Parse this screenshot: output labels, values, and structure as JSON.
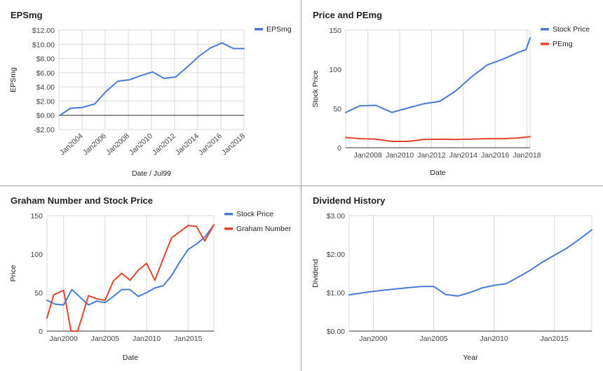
{
  "chart_data": [
    {
      "type": "line",
      "title": "EPSmg",
      "xlabel": "Date / Jul99",
      "ylabel": "EPSmg",
      "xlim": [
        2002,
        2018
      ],
      "ylim": [
        -2,
        12
      ],
      "yticks": [
        -2,
        0,
        2,
        4,
        6,
        8,
        10,
        12
      ],
      "ytick_labels": [
        "-$2.00",
        "$0.00",
        "$2.00",
        "$4.00",
        "$6.00",
        "$8.00",
        "$10.00",
        "$12.00"
      ],
      "xticks": [
        2004,
        2006,
        2008,
        2010,
        2012,
        2014,
        2016,
        2018
      ],
      "xtick_labels": [
        "Jan2004",
        "Jan2006",
        "Jan2008",
        "Jan2010",
        "Jan2012",
        "Jan2014",
        "Jan2016",
        "Jan2018"
      ],
      "rotate_xticks": true,
      "zero_line": true,
      "legend": "right",
      "series": [
        {
          "name": "EPSmg",
          "color": "#4a7bd0",
          "x": [
            2002.1,
            2003.0,
            2004.0,
            2005.1,
            2006.1,
            2007.1,
            2008.1,
            2009.1,
            2010.1,
            2011.1,
            2012.1,
            2013.1,
            2014.1,
            2015.1,
            2016.1,
            2017.1,
            2018.0
          ],
          "y": [
            0.0,
            1.0,
            1.1,
            1.6,
            3.4,
            4.8,
            5.0,
            5.6,
            6.1,
            5.2,
            5.4,
            6.8,
            8.3,
            9.5,
            10.2,
            9.4,
            9.4
          ]
        }
      ]
    },
    {
      "type": "line",
      "title": "Price and PEmg",
      "xlabel": "Date",
      "ylabel": "Stock Price",
      "xlim": [
        2006.6,
        2018.2
      ],
      "ylim": [
        0,
        150
      ],
      "yticks": [
        0,
        50,
        100,
        150
      ],
      "ytick_labels": [
        "0",
        "50",
        "100",
        "150"
      ],
      "xticks": [
        2008,
        2010,
        2012,
        2014,
        2016,
        2018
      ],
      "xtick_labels": [
        "Jan2008",
        "Jan2010",
        "Jan2012",
        "Jan2014",
        "Jan2016",
        "Jan2018"
      ],
      "grid": "vertical",
      "legend": "right",
      "series": [
        {
          "name": "Stock Price",
          "color": "#4a7bd0",
          "x": [
            2006.6,
            2007.5,
            2008.5,
            2009.5,
            2010.5,
            2011.5,
            2012.5,
            2013.5,
            2014.5,
            2015.5,
            2016.5,
            2017.5,
            2017.95,
            2018.2
          ],
          "y": [
            45,
            53.5,
            54,
            45,
            50.5,
            56,
            59,
            72,
            90,
            105.5,
            113,
            122,
            125,
            140
          ]
        },
        {
          "name": "PEmg",
          "color": "#e0462b",
          "x": [
            2006.6,
            2007.5,
            2008.5,
            2009.5,
            2010.5,
            2011.5,
            2012.5,
            2013.5,
            2014.5,
            2015.5,
            2016.5,
            2017.5,
            2018.2
          ],
          "y": [
            13,
            11.5,
            11,
            8,
            8,
            10.5,
            10.8,
            10.5,
            11,
            11.5,
            11.5,
            12.5,
            14
          ]
        }
      ]
    },
    {
      "type": "line",
      "title": "Graham Number and Stock Price",
      "xlabel": "Date",
      "ylabel": "Price",
      "xlim": [
        1998,
        2018.1
      ],
      "ylim": [
        0,
        150
      ],
      "yticks": [
        0,
        50,
        100,
        150
      ],
      "ytick_labels": [
        "0",
        "50",
        "100",
        "150"
      ],
      "xticks": [
        2000,
        2005,
        2010,
        2015
      ],
      "xtick_labels": [
        "Jan2000",
        "Jan2005",
        "Jan2010",
        "Jan2015"
      ],
      "grid": "vertical",
      "legend": "right",
      "series": [
        {
          "name": "Stock Price",
          "color": "#4a7bd0",
          "x": [
            1998,
            1999,
            2000,
            2001,
            2002,
            2003,
            2004,
            2005,
            2006,
            2007,
            2008,
            2009,
            2010,
            2011,
            2012,
            2013,
            2014,
            2015,
            2016,
            2017,
            2018.1
          ],
          "y": [
            40,
            35,
            34,
            54,
            44,
            34,
            39,
            37,
            45,
            54,
            54,
            45,
            50,
            56,
            59,
            72,
            90,
            106,
            113,
            122,
            138
          ]
        },
        {
          "name": "Graham Number",
          "color": "#e0462b",
          "x": [
            1998,
            1998.8,
            2000,
            2000.9,
            2001.7,
            2003,
            2004,
            2005,
            2006,
            2007,
            2008,
            2009,
            2010,
            2011,
            2012,
            2013,
            2014,
            2015,
            2016,
            2017,
            2018.1
          ],
          "y": [
            17,
            47,
            53,
            0,
            0,
            46,
            42,
            40,
            65,
            75,
            66,
            79,
            88,
            66,
            94,
            121,
            129,
            137,
            136,
            117,
            138
          ]
        }
      ]
    },
    {
      "type": "line",
      "title": "Dividend History",
      "xlabel": "Year",
      "ylabel": "Dividend",
      "xlim": [
        1998,
        2018.1
      ],
      "ylim": [
        0,
        3
      ],
      "yticks": [
        0,
        1,
        2,
        3
      ],
      "ytick_labels": [
        "$0.00",
        "$1.00",
        "$2.00",
        "$3.00"
      ],
      "xticks": [
        2000,
        2005,
        2010,
        2015
      ],
      "xtick_labels": [
        "Jan2000",
        "Jan2005",
        "Jan2010",
        "Jan2015"
      ],
      "grid": "vertical",
      "legend": "none",
      "series": [
        {
          "name": "Dividend",
          "color": "#4a7bd0",
          "x": [
            1998,
            1999,
            2000,
            2001,
            2002,
            2003,
            2004,
            2005,
            2006,
            2007,
            2008,
            2009,
            2010,
            2011,
            2012,
            2013,
            2014,
            2015,
            2016,
            2017,
            2018.1
          ],
          "y": [
            0.94,
            0.99,
            1.03,
            1.07,
            1.1,
            1.13,
            1.16,
            1.16,
            0.95,
            0.91,
            1.0,
            1.12,
            1.19,
            1.23,
            1.4,
            1.58,
            1.79,
            1.97,
            2.15,
            2.37,
            2.63
          ]
        }
      ]
    }
  ]
}
